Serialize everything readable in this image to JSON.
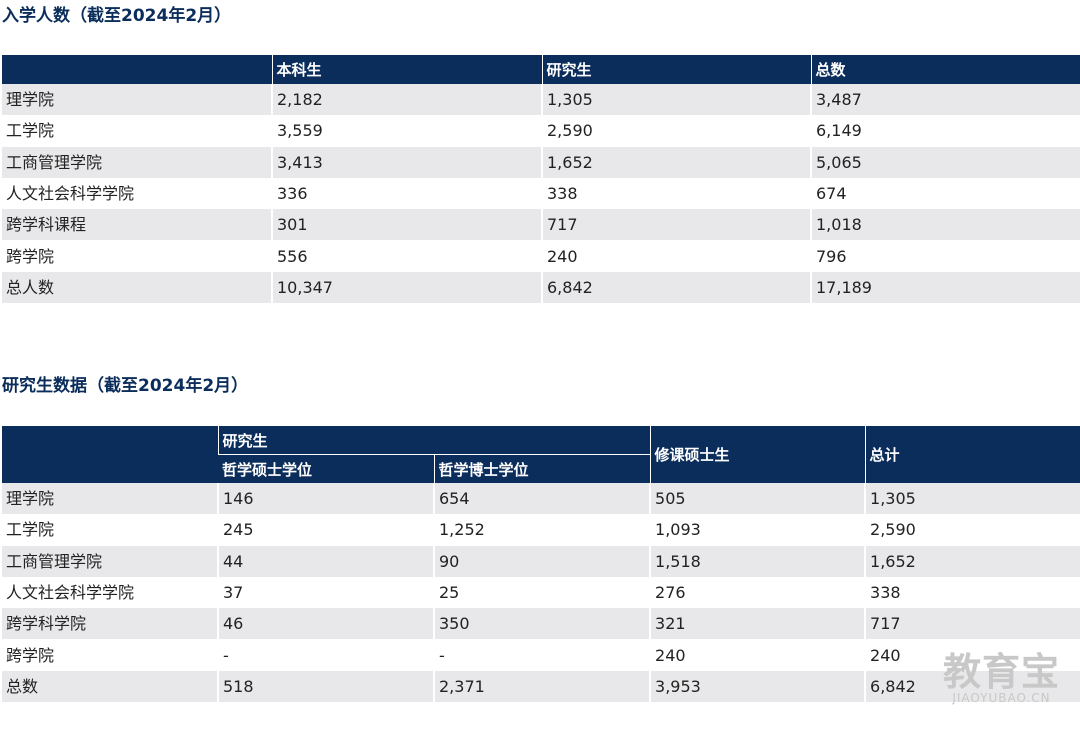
{
  "enrollment": {
    "title": "入学人数（截至2024年2月）",
    "headers": [
      "",
      "本科生",
      "研究生",
      "总数"
    ],
    "rows": [
      [
        "理学院",
        "2,182",
        "1,305",
        "3,487"
      ],
      [
        "工学院",
        "3,559",
        "2,590",
        "6,149"
      ],
      [
        "工商管理学院",
        "3,413",
        "1,652",
        "5,065"
      ],
      [
        "人文社会科学学院",
        "336",
        "338",
        "674"
      ],
      [
        "跨学科课程",
        "301",
        "717",
        "1,018"
      ],
      [
        "跨学院",
        "556",
        "240",
        "796"
      ],
      [
        "总人数",
        "10,347",
        "6,842",
        "17,189"
      ]
    ]
  },
  "graduate": {
    "title": "研究生数据（截至2024年2月）",
    "group_header": "研究生",
    "sub_headers": [
      "哲学硕士学位",
      "哲学博士学位"
    ],
    "col_headers": [
      "修课硕士生",
      "总计"
    ],
    "rows": [
      [
        "理学院",
        "146",
        "654",
        "505",
        "1,305"
      ],
      [
        "工学院",
        "245",
        "1,252",
        "1,093",
        "2,590"
      ],
      [
        "工商管理学院",
        "44",
        "90",
        "1,518",
        "1,652"
      ],
      [
        "人文社会科学学院",
        "37",
        "25",
        "276",
        "338"
      ],
      [
        "跨学科学院",
        "46",
        "350",
        "321",
        "717"
      ],
      [
        "跨学院",
        "-",
        "-",
        "240",
        "240"
      ],
      [
        "总数",
        "518",
        "2,371",
        "3,953",
        "6,842"
      ]
    ]
  },
  "watermark": {
    "main": "教育宝",
    "sub": "JIAOYUBAO.CN"
  }
}
